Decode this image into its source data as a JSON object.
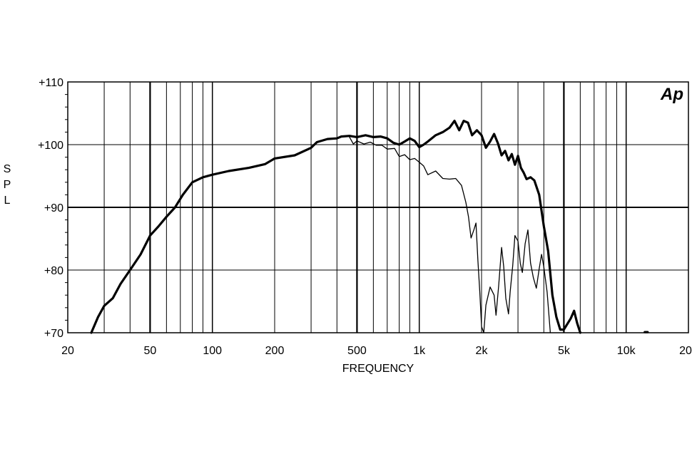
{
  "chart_data": {
    "type": "line",
    "title": "",
    "xlabel": "FREQUENCY",
    "ylabel": "S P L",
    "x_scale": "log",
    "xlim": [
      20,
      20000
    ],
    "ylim": [
      70,
      110
    ],
    "grid": true,
    "logo": "Ap",
    "x_ticks": [
      {
        "value": 20,
        "label": "20"
      },
      {
        "value": 50,
        "label": "50"
      },
      {
        "value": 100,
        "label": "100"
      },
      {
        "value": 200,
        "label": "200"
      },
      {
        "value": 500,
        "label": "500"
      },
      {
        "value": 1000,
        "label": "1k"
      },
      {
        "value": 2000,
        "label": "2k"
      },
      {
        "value": 5000,
        "label": "5k"
      },
      {
        "value": 10000,
        "label": "10k"
      },
      {
        "value": 20000,
        "label": "20k"
      }
    ],
    "y_ticks": [
      {
        "value": 70,
        "label": "+70"
      },
      {
        "value": 80,
        "label": "+80"
      },
      {
        "value": 90,
        "label": "+90"
      },
      {
        "value": 100,
        "label": "+100"
      },
      {
        "value": 110,
        "label": "+110"
      }
    ],
    "series": [
      {
        "name": "",
        "stroke": "thick",
        "points": [
          [
            26,
            70
          ],
          [
            28,
            72.5
          ],
          [
            30,
            74.3
          ],
          [
            33,
            75.5
          ],
          [
            36,
            77.8
          ],
          [
            40,
            80
          ],
          [
            45,
            82.5
          ],
          [
            50,
            85.5
          ],
          [
            55,
            87
          ],
          [
            60,
            88.5
          ],
          [
            66,
            90
          ],
          [
            72,
            92
          ],
          [
            80,
            94
          ],
          [
            90,
            94.8
          ],
          [
            100,
            95.2
          ],
          [
            120,
            95.8
          ],
          [
            150,
            96.3
          ],
          [
            180,
            96.9
          ],
          [
            200,
            97.8
          ],
          [
            250,
            98.3
          ],
          [
            300,
            99.5
          ],
          [
            320,
            100.4
          ],
          [
            360,
            100.9
          ],
          [
            400,
            101
          ],
          [
            420,
            101.3
          ],
          [
            460,
            101.4
          ],
          [
            500,
            101.2
          ],
          [
            550,
            101.5
          ],
          [
            600,
            101.2
          ],
          [
            650,
            101.3
          ],
          [
            700,
            101
          ],
          [
            750,
            100.3
          ],
          [
            800,
            100
          ],
          [
            850,
            100.5
          ],
          [
            900,
            101
          ],
          [
            950,
            100.6
          ],
          [
            1000,
            99.6
          ],
          [
            1050,
            100
          ],
          [
            1100,
            100.5
          ],
          [
            1200,
            101.5
          ],
          [
            1300,
            102
          ],
          [
            1400,
            102.7
          ],
          [
            1480,
            103.8
          ],
          [
            1560,
            102.3
          ],
          [
            1640,
            103.8
          ],
          [
            1720,
            103.5
          ],
          [
            1800,
            101.5
          ],
          [
            1900,
            102.3
          ],
          [
            2000,
            101.5
          ],
          [
            2100,
            99.5
          ],
          [
            2200,
            100.5
          ],
          [
            2300,
            101.7
          ],
          [
            2400,
            100.2
          ],
          [
            2500,
            98.3
          ],
          [
            2600,
            99
          ],
          [
            2700,
            97.5
          ],
          [
            2800,
            98.5
          ],
          [
            2900,
            96.8
          ],
          [
            3000,
            98.2
          ],
          [
            3100,
            96.3
          ],
          [
            3200,
            95.5
          ],
          [
            3300,
            94.5
          ],
          [
            3450,
            94.8
          ],
          [
            3600,
            94.3
          ],
          [
            3800,
            92
          ],
          [
            4000,
            87
          ],
          [
            4200,
            83
          ],
          [
            4400,
            76
          ],
          [
            4600,
            72.5
          ],
          [
            4800,
            70.5
          ],
          [
            5000,
            70.5
          ],
          [
            5400,
            72.3
          ],
          [
            5600,
            73.5
          ],
          [
            5800,
            71.5
          ],
          [
            6000,
            70
          ]
        ]
      },
      {
        "name": "",
        "stroke": "thin",
        "points": [
          [
            460,
            101.2
          ],
          [
            480,
            100.1
          ],
          [
            500,
            100.6
          ],
          [
            540,
            100.1
          ],
          [
            580,
            100.4
          ],
          [
            620,
            99.9
          ],
          [
            660,
            99.9
          ],
          [
            700,
            99.3
          ],
          [
            760,
            99.4
          ],
          [
            800,
            98.1
          ],
          [
            850,
            98.4
          ],
          [
            900,
            97.6
          ],
          [
            950,
            97.8
          ],
          [
            1000,
            97.2
          ],
          [
            1050,
            96.6
          ],
          [
            1100,
            95.2
          ],
          [
            1200,
            95.8
          ],
          [
            1300,
            94.6
          ],
          [
            1400,
            94.5
          ],
          [
            1500,
            94.6
          ],
          [
            1600,
            93.5
          ],
          [
            1680,
            90.8
          ],
          [
            1730,
            88.5
          ],
          [
            1780,
            85.1
          ],
          [
            1840,
            86.5
          ],
          [
            1880,
            87.5
          ],
          [
            1920,
            81.5
          ],
          [
            1960,
            76.6
          ],
          [
            2000,
            71
          ],
          [
            2050,
            70
          ],
          [
            2100,
            74.4
          ],
          [
            2200,
            77.3
          ],
          [
            2300,
            76
          ],
          [
            2350,
            72.8
          ],
          [
            2420,
            77.5
          ],
          [
            2500,
            83.6
          ],
          [
            2560,
            80.5
          ],
          [
            2620,
            75.5
          ],
          [
            2700,
            73
          ],
          [
            2750,
            76.5
          ],
          [
            2830,
            80.7
          ],
          [
            2900,
            85.5
          ],
          [
            3000,
            84.6
          ],
          [
            3080,
            81
          ],
          [
            3150,
            79.6
          ],
          [
            3250,
            84.2
          ],
          [
            3350,
            86.4
          ],
          [
            3450,
            81.1
          ],
          [
            3560,
            78.8
          ],
          [
            3680,
            77.1
          ],
          [
            3800,
            80.2
          ],
          [
            3900,
            82.5
          ],
          [
            4000,
            80.5
          ],
          [
            4150,
            76.5
          ],
          [
            4300,
            70
          ]
        ]
      },
      {
        "name": "",
        "stroke": "thick",
        "points": [
          [
            12300,
            70.1
          ],
          [
            12700,
            70.1
          ]
        ]
      }
    ]
  }
}
